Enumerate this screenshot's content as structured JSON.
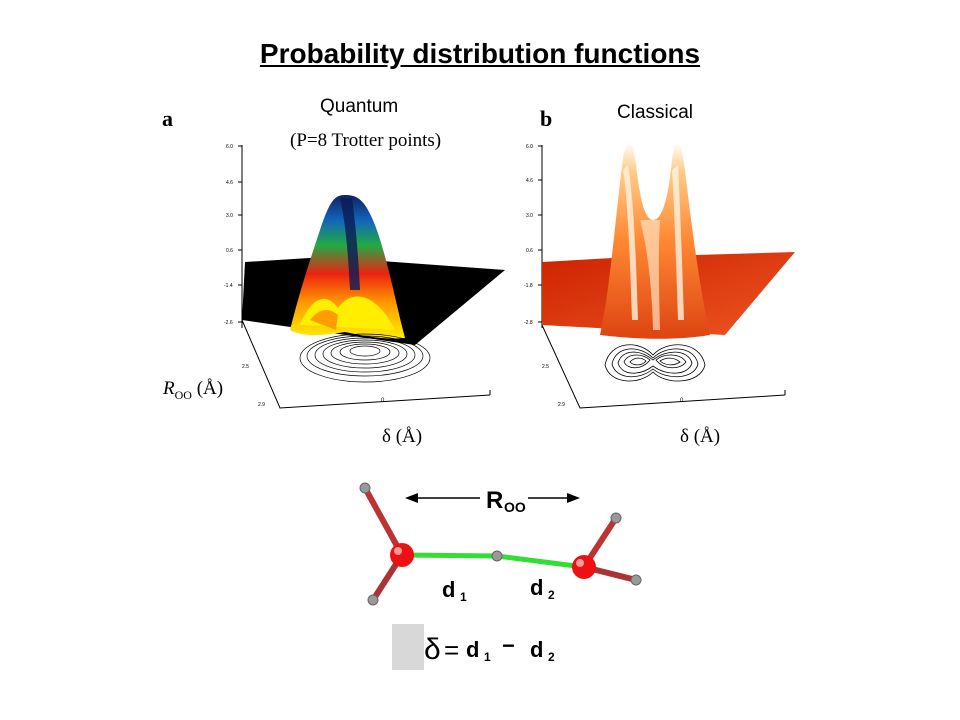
{
  "title": "Probability distribution functions",
  "panel_a": {
    "letter": "a",
    "label": "Quantum",
    "sublabel": "(P=8 Trotter points)",
    "yaxis_label_symbol": "R",
    "yaxis_label_sub": "OO",
    "yaxis_label_unit": "(Å)",
    "xaxis_label": "δ (Å)",
    "z_ticks": [
      "6.0",
      "4.6",
      "3.0",
      "0.6",
      "-1.4",
      "-2.6"
    ]
  },
  "panel_b": {
    "letter": "b",
    "label": "Classical",
    "xaxis_label": "δ (Å)",
    "z_ticks": [
      "6.0",
      "4.6",
      "3.0",
      "0.6",
      "-1.8",
      "-2.8"
    ]
  },
  "molecule": {
    "roo_symbol": "R",
    "roo_sub": "OO",
    "d1_symbol": "d",
    "d1_sub": "1",
    "d2_symbol": "d",
    "d2_sub": "2",
    "eq_delta": "δ",
    "eq_equals": "=",
    "eq_d1": "d",
    "eq_d1_sub": "1",
    "eq_minus": "−",
    "eq_d2": "d",
    "eq_d2_sub": "2"
  },
  "colors": {
    "bond_green": "#33dd33",
    "oxygen_red": "#ee1111",
    "hydrogen_gray": "#999999",
    "classical_surface": "#cc3311",
    "quantum_floor": "#000000"
  }
}
